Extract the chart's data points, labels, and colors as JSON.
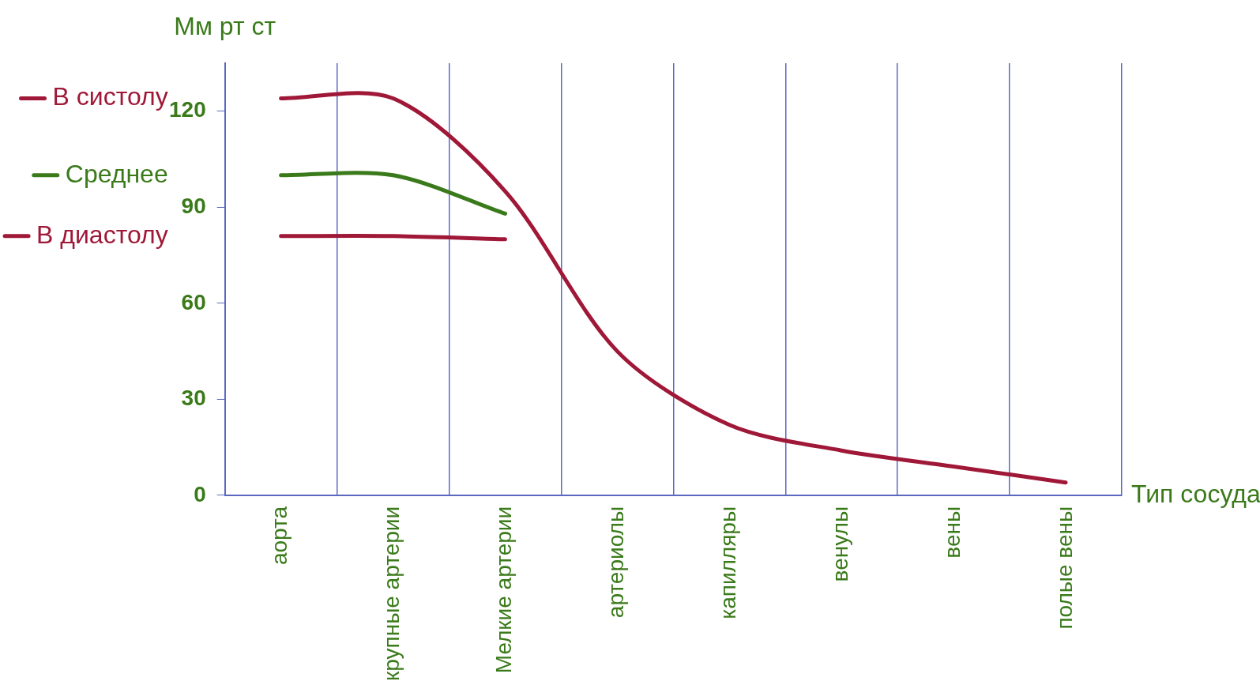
{
  "chart_data": {
    "type": "line",
    "xlabel": "Тип сосуда",
    "ylabel": "Мм рт ст",
    "categories": [
      "аорта",
      "крупные артерии",
      "Мелкие артерии",
      "артериолы",
      "капилляры",
      "венулы",
      "вены",
      "полые вены"
    ],
    "series": [
      {
        "name": "В систолу",
        "color": "#a01838",
        "values": [
          124,
          124,
          95,
          45,
          22,
          14,
          9,
          4
        ]
      },
      {
        "name": "Среднее",
        "color": "#3a7a1a",
        "values": [
          100,
          100,
          88,
          null,
          null,
          null,
          null,
          null
        ]
      },
      {
        "name": "В диастолу",
        "color": "#a01838",
        "values": [
          81,
          81,
          80,
          null,
          null,
          null,
          null,
          null
        ]
      }
    ],
    "ylim": [
      0,
      135
    ],
    "yticks": [
      0,
      30,
      60,
      90,
      120
    ],
    "grid": "x",
    "legend": "left",
    "marker": "none",
    "line_style": "solid"
  }
}
